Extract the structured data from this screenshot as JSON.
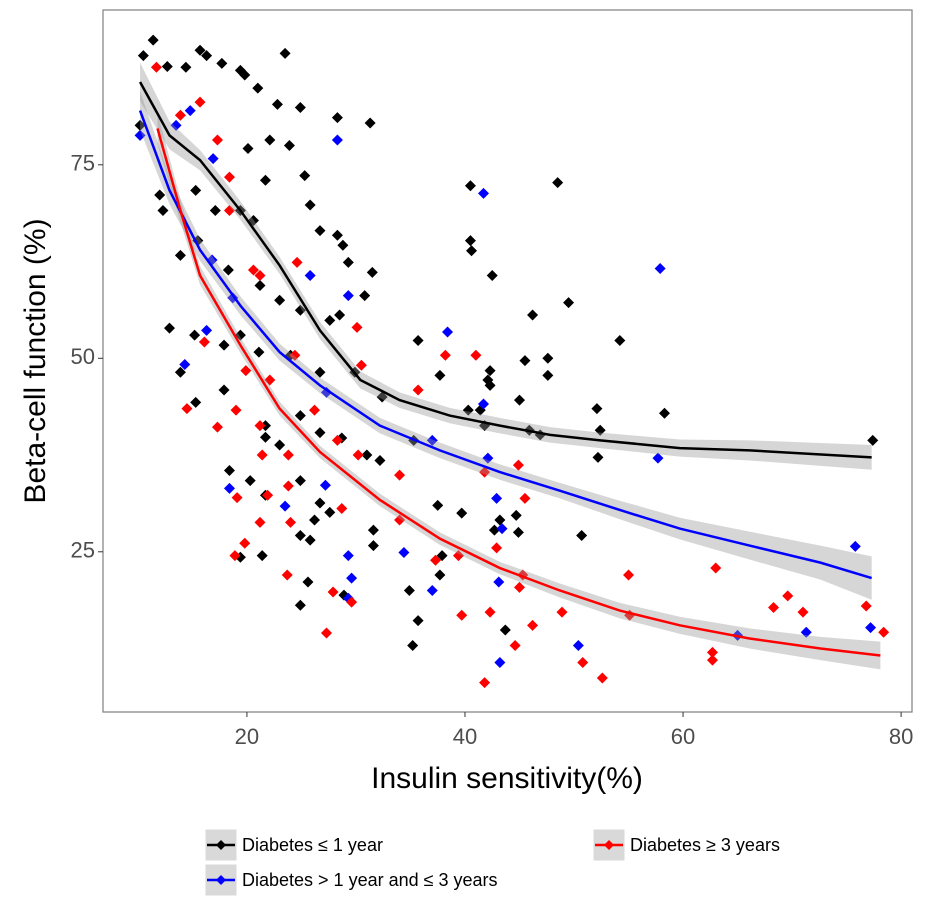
{
  "chart_data": {
    "type": "scatter",
    "xlabel": "Insulin sensitivity(%)",
    "ylabel": "Beta-cell function (%)",
    "xlim": [
      6.8,
      81.0
    ],
    "ylim": [
      4.3,
      95.0
    ],
    "xticks": [
      20,
      40,
      60,
      80
    ],
    "yticks": [
      25,
      50,
      75
    ],
    "grid": false,
    "legend": "bottom",
    "series": [
      {
        "name": "Diabetes ≤ 1 year",
        "color": "#000000",
        "x": [
          10.2,
          11.4,
          10.5,
          12.7,
          14.4,
          15.7,
          16.3,
          17.7,
          19.4,
          19.8,
          21.0,
          23.5,
          24.9,
          22.8,
          23.9,
          22.1,
          20.1,
          12.0,
          12.3,
          15.3,
          17.1,
          19.4,
          20.6,
          21.7,
          25.3,
          25.8,
          26.7,
          28.3,
          28.8,
          29.3,
          31.3,
          28.3,
          31.5,
          13.9,
          15.5,
          18.3,
          21.2,
          23.0,
          24.9,
          27.6,
          28.5,
          30.8,
          12.9,
          15.2,
          17.9,
          19.4,
          21.1,
          24.0,
          26.7,
          29.9,
          32.4,
          13.9,
          15.3,
          17.9,
          21.7,
          24.9,
          26.7,
          28.7,
          31.0,
          32.2,
          35.3,
          21.7,
          23.0,
          24.9,
          26.7,
          27.6,
          18.4,
          20.3,
          21.7,
          24.9,
          25.8,
          26.2,
          31.6,
          31.6,
          24.9,
          25.6,
          28.9,
          19.4,
          21.4,
          34.9,
          35.2,
          35.7,
          35.7,
          37.7,
          37.5,
          37.7,
          37.9,
          39.7,
          40.5,
          40.5,
          40.6,
          42.5,
          42.3,
          42.1,
          42.3,
          40.3,
          41.4,
          41.8,
          42.7,
          43.2,
          43.7,
          44.7,
          44.9,
          45.0,
          45.5,
          46.2,
          45.9,
          46.9,
          48.5,
          47.6,
          47.6,
          49.5,
          50.7,
          52.1,
          52.2,
          52.4,
          54.2,
          58.3,
          77.4
        ],
        "values": [
          80.1,
          91.1,
          89.1,
          87.7,
          87.6,
          89.8,
          89.1,
          88.1,
          87.2,
          86.6,
          84.9,
          89.4,
          82.4,
          82.8,
          77.5,
          78.2,
          77.1,
          71.1,
          69.1,
          71.7,
          69.1,
          69.1,
          67.8,
          73.0,
          73.6,
          69.8,
          66.5,
          65.9,
          64.6,
          62.4,
          80.4,
          81.1,
          61.1,
          63.3,
          65.2,
          61.4,
          59.4,
          57.5,
          56.2,
          54.9,
          55.6,
          58.1,
          53.9,
          53.0,
          51.7,
          53.0,
          50.8,
          50.4,
          48.2,
          48.2,
          45.0,
          48.2,
          44.3,
          45.9,
          41.3,
          42.6,
          40.4,
          39.7,
          37.5,
          36.8,
          39.4,
          39.8,
          38.8,
          34.2,
          31.3,
          30.1,
          35.5,
          34.2,
          32.3,
          27.1,
          26.5,
          29.1,
          25.8,
          27.8,
          18.1,
          21.1,
          19.4,
          24.3,
          24.5,
          20.0,
          12.9,
          16.1,
          52.3,
          47.8,
          31.0,
          22.0,
          24.5,
          30.0,
          72.3,
          65.2,
          63.9,
          60.7,
          48.4,
          47.2,
          46.5,
          43.3,
          43.3,
          41.3,
          27.8,
          29.1,
          14.9,
          29.7,
          27.5,
          44.6,
          49.7,
          55.6,
          40.7,
          40.1,
          72.7,
          50.0,
          47.8,
          57.2,
          27.1,
          43.5,
          37.2,
          40.7,
          52.3,
          42.9,
          39.4
        ],
        "fit_x": [
          10.2,
          12.9,
          15.7,
          19.4,
          23.0,
          26.7,
          30.4,
          34.0,
          38.6,
          43.2,
          47.8,
          52.4,
          59.7,
          66.1,
          77.3
        ],
        "fit_values": [
          85.7,
          78.8,
          75.6,
          69.1,
          62.0,
          53.6,
          47.2,
          44.6,
          42.6,
          41.3,
          40.1,
          39.4,
          38.4,
          38.1,
          37.2
        ],
        "fit_error": [
          2.5,
          1.8,
          1.3,
          1.2,
          1.1,
          1.1,
          1.1,
          1.0,
          1.0,
          1.0,
          1.0,
          1.0,
          1.1,
          1.3,
          1.6
        ]
      },
      {
        "name": "Diabetes > 1 year and ≤ 3 years",
        "color": "#0000ff",
        "x": [
          10.2,
          13.5,
          14.8,
          16.9,
          28.3,
          41.7,
          57.9,
          16.8,
          25.8,
          29.3,
          16.3,
          14.3,
          18.7,
          27.3,
          38.4,
          41.7,
          37.0,
          42.1,
          57.7,
          27.2,
          18.4,
          23.5,
          29.3,
          29.6,
          29.3,
          34.4,
          37.0,
          42.9,
          43.4,
          43.1,
          43.2,
          50.4,
          65.0,
          71.3,
          75.8,
          77.2
        ],
        "values": [
          78.8,
          80.1,
          82.0,
          75.8,
          78.2,
          71.3,
          61.6,
          62.7,
          60.7,
          58.1,
          53.6,
          49.2,
          57.8,
          45.6,
          53.4,
          44.1,
          39.4,
          37.1,
          37.1,
          33.6,
          33.2,
          30.9,
          24.5,
          21.6,
          19.0,
          24.9,
          20.0,
          31.9,
          28.0,
          21.1,
          10.7,
          12.9,
          14.2,
          14.6,
          25.7,
          15.2
        ],
        "fit_x": [
          10.2,
          12.9,
          15.7,
          19.4,
          23.0,
          26.7,
          32.2,
          37.7,
          43.2,
          48.7,
          54.2,
          59.7,
          66.1,
          72.6,
          77.3
        ],
        "fit_values": [
          82.0,
          71.7,
          64.0,
          56.8,
          50.8,
          46.5,
          41.3,
          38.1,
          35.3,
          32.9,
          30.4,
          28.0,
          25.8,
          23.6,
          21.6
        ],
        "fit_error": [
          2.5,
          1.8,
          1.4,
          1.2,
          1.1,
          1.0,
          1.0,
          1.0,
          1.0,
          1.0,
          1.2,
          1.4,
          1.8,
          2.2,
          2.8
        ]
      },
      {
        "name": "Diabetes ≥ 3 years",
        "color": "#ff0000",
        "x": [
          11.7,
          13.9,
          15.7,
          17.3,
          18.4,
          18.4,
          21.2,
          20.6,
          24.6,
          24.4,
          22.1,
          16.1,
          19.9,
          14.5,
          17.3,
          19.0,
          21.2,
          21.4,
          23.8,
          26.2,
          28.3,
          30.1,
          30.5,
          30.2,
          23.8,
          21.9,
          19.1,
          21.2,
          24.0,
          19.8,
          18.9,
          23.7,
          27.3,
          27.9,
          28.7,
          29.6,
          34.0,
          34.0,
          35.7,
          38.2,
          37.3,
          39.4,
          39.7,
          41.0,
          41.8,
          41.8,
          42.3,
          42.9,
          44.6,
          44.9,
          45.5,
          45.3,
          45.0,
          46.2,
          48.9,
          50.8,
          52.6,
          55.0,
          55.1,
          62.7,
          62.7,
          63.0,
          68.3,
          69.6,
          71.0,
          76.8,
          78.4
        ],
        "values": [
          87.6,
          81.4,
          83.1,
          78.2,
          73.4,
          69.1,
          60.7,
          61.4,
          62.4,
          50.4,
          47.2,
          52.1,
          48.4,
          43.5,
          41.1,
          43.3,
          41.3,
          37.5,
          37.5,
          43.3,
          39.4,
          54.0,
          49.1,
          37.5,
          33.5,
          32.3,
          32.0,
          28.8,
          28.8,
          26.1,
          24.5,
          22.0,
          14.5,
          19.8,
          30.6,
          18.5,
          29.1,
          34.9,
          45.9,
          50.4,
          23.9,
          24.5,
          16.8,
          50.4,
          35.3,
          8.1,
          17.2,
          25.5,
          12.9,
          36.2,
          31.9,
          22.0,
          20.4,
          15.5,
          17.2,
          10.7,
          8.7,
          22.0,
          16.8,
          12.0,
          11.0,
          22.9,
          17.8,
          19.3,
          17.2,
          18.0,
          14.6
        ],
        "fit_x": [
          11.8,
          13.9,
          15.7,
          19.4,
          23.0,
          26.7,
          32.2,
          37.7,
          43.2,
          48.7,
          54.2,
          59.7,
          66.1,
          72.6,
          78.1
        ],
        "fit_values": [
          79.7,
          69.1,
          60.7,
          51.7,
          43.5,
          37.9,
          31.7,
          26.7,
          22.9,
          20.0,
          17.4,
          15.5,
          13.8,
          12.5,
          11.6
        ],
        "fit_error": [
          2.0,
          1.5,
          1.2,
          1.0,
          0.9,
          0.8,
          0.8,
          0.8,
          0.8,
          0.9,
          1.0,
          1.1,
          1.3,
          1.5,
          1.8
        ]
      }
    ]
  }
}
